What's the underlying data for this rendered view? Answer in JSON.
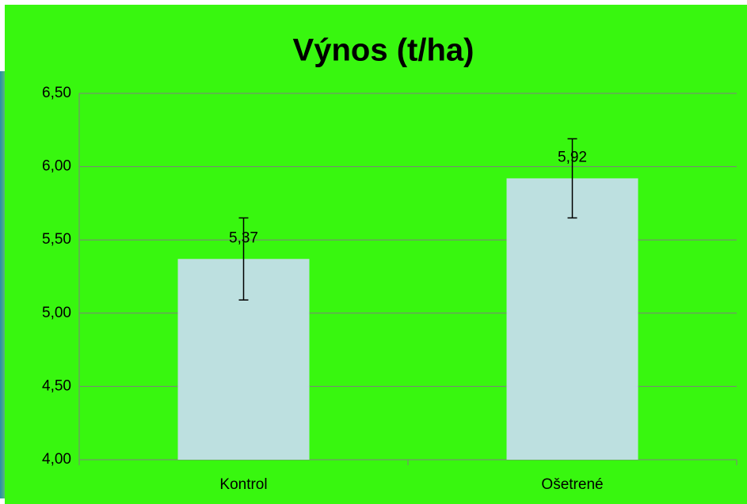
{
  "chart_data": {
    "type": "bar",
    "title": "Výnos (t/ha)",
    "categories": [
      "Kontrol",
      "Ošetrené"
    ],
    "values": [
      5.37,
      5.92
    ],
    "value_labels": [
      "5,37",
      "5,92"
    ],
    "errors": [
      0.28,
      0.27
    ],
    "color": "#bde0e0",
    "ylim": [
      4,
      6.5
    ],
    "yticks": [
      {
        "value": 4,
        "label": "4,00"
      },
      {
        "value": 4.5,
        "label": "4,50"
      },
      {
        "value": 5,
        "label": "5,00"
      },
      {
        "value": 5.5,
        "label": "5,50"
      },
      {
        "value": 6,
        "label": "6,00"
      },
      {
        "value": 6.5,
        "label": "6,50"
      }
    ],
    "grid": true
  }
}
